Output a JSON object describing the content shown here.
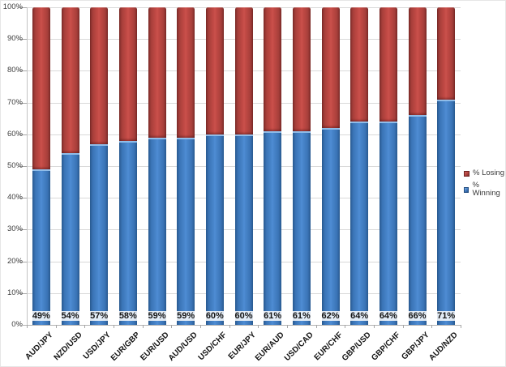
{
  "chart_data": {
    "type": "bar",
    "subtype": "stacked-column",
    "title": "",
    "xlabel": "",
    "ylabel": "",
    "categories": [
      "AUD/JPY",
      "NZD/USD",
      "USD/JPY",
      "EUR/GBP",
      "EUR/USD",
      "AUD/USD",
      "USD/CHF",
      "EUR/JPY",
      "EUR/AUD",
      "USD/CAD",
      "EUR/CHF",
      "GBP/USD",
      "GBP/CHF",
      "GBP/JPY",
      "AUD/NZD"
    ],
    "series": [
      {
        "name": "% Winning",
        "color": "#4885cb",
        "values": [
          49,
          54,
          57,
          58,
          59,
          59,
          60,
          60,
          61,
          61,
          62,
          64,
          64,
          66,
          71
        ]
      },
      {
        "name": "% Losing",
        "color": "#c24a45",
        "values": [
          51,
          46,
          43,
          42,
          41,
          41,
          40,
          40,
          39,
          39,
          38,
          36,
          36,
          34,
          29
        ]
      }
    ],
    "data_labels": [
      "49%",
      "54%",
      "57%",
      "58%",
      "59%",
      "59%",
      "60%",
      "60%",
      "61%",
      "61%",
      "62%",
      "64%",
      "64%",
      "66%",
      "71%"
    ],
    "y_ticks": [
      "100%",
      "90%",
      "80%",
      "70%",
      "60%",
      "50%",
      "40%",
      "30%",
      "20%",
      "10%",
      "0%"
    ],
    "ylim": [
      0,
      100
    ],
    "grid": true,
    "legend_position": "right"
  },
  "legend": {
    "items": [
      {
        "label": "% Losing",
        "color": "#c24a45"
      },
      {
        "label": "% Winning",
        "color": "#4885cb"
      }
    ]
  }
}
